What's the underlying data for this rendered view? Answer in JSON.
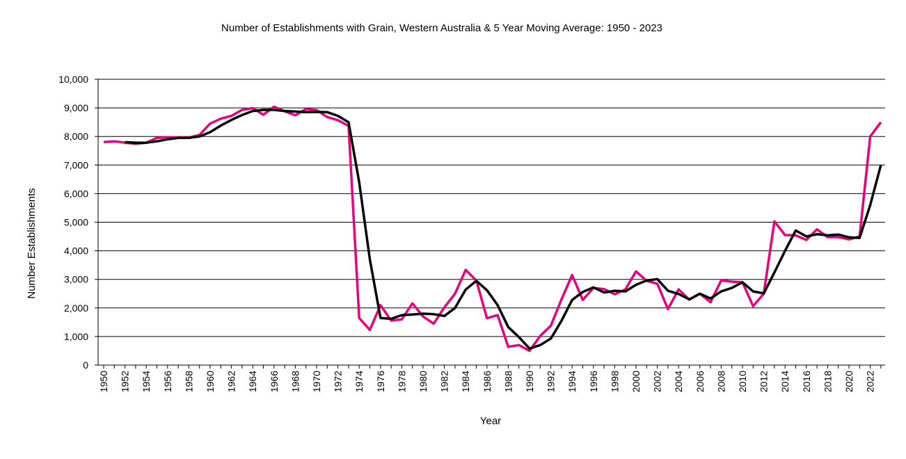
{
  "chart_data": {
    "type": "line",
    "title": "Number of Establishments with Grain, Western Australia & 5 Year Moving Average: 1950 - 2023",
    "xlabel": "Year",
    "ylabel": "Number Establishments",
    "ylim": [
      0,
      10000
    ],
    "y_ticks": [
      "0",
      "1,000",
      "2,000",
      "3,000",
      "4,000",
      "5,000",
      "6,000",
      "7,000",
      "8,000",
      "9,000",
      "10,000"
    ],
    "x_tick_labels": [
      "1950",
      "1952",
      "1954",
      "1956",
      "1958",
      "1960",
      "1962",
      "1964",
      "1966",
      "1968",
      "1970",
      "1972",
      "1974",
      "1976",
      "1978",
      "1980",
      "1982",
      "1984",
      "1986",
      "1988",
      "1990",
      "1992",
      "1994",
      "1996",
      "1998",
      "2000",
      "2002",
      "2004",
      "2006",
      "2008",
      "2010",
      "2012",
      "2014",
      "2016",
      "2018",
      "2020",
      "2022"
    ],
    "grid": "horizontal",
    "colors": {
      "establishments": "#e6007e",
      "moving_average": "#000000"
    },
    "x": [
      1950,
      1951,
      1952,
      1953,
      1954,
      1955,
      1956,
      1957,
      1958,
      1959,
      1960,
      1961,
      1962,
      1963,
      1964,
      1965,
      1966,
      1967,
      1968,
      1969,
      1970,
      1971,
      1972,
      1973,
      1974,
      1975,
      1976,
      1977,
      1978,
      1979,
      1980,
      1981,
      1982,
      1983,
      1984,
      1985,
      1986,
      1987,
      1988,
      1989,
      1990,
      1991,
      1992,
      1993,
      1994,
      1995,
      1996,
      1997,
      1998,
      1999,
      2000,
      2001,
      2002,
      2003,
      2004,
      2005,
      2006,
      2007,
      2008,
      2009,
      2010,
      2011,
      2012,
      2013,
      2014,
      2015,
      2016,
      2017,
      2018,
      2019,
      2020,
      2021,
      2022,
      2023
    ],
    "series": [
      {
        "values": [
          7800,
          7830,
          7780,
          7740,
          7780,
          7950,
          7970,
          7960,
          7960,
          8050,
          8450,
          8620,
          8720,
          8930,
          8990,
          8760,
          9040,
          8880,
          8740,
          8960,
          8920,
          8680,
          8570,
          8370,
          1650,
          1230,
          2100,
          1560,
          1600,
          2160,
          1700,
          1450,
          2020,
          2500,
          3330,
          2960,
          1640,
          1750,
          640,
          700,
          500,
          1020,
          1380,
          2300,
          3150,
          2280,
          2700,
          2660,
          2480,
          2650,
          3280,
          2950,
          2850,
          1960,
          2650,
          2290,
          2500,
          2200,
          2960,
          2920,
          2900,
          2060,
          2500,
          5030,
          4550,
          4540,
          4380,
          4750,
          4480,
          4480,
          4400,
          4500,
          8000,
          8500
        ]
      },
      {
        "values": [
          null,
          null,
          7800,
          7780,
          7780,
          7830,
          7900,
          7950,
          7950,
          8000,
          8150,
          8380,
          8580,
          8750,
          8890,
          8930,
          8930,
          8890,
          8870,
          8850,
          8860,
          8850,
          8720,
          8500,
          6400,
          3700,
          1650,
          1620,
          1750,
          1770,
          1800,
          1780,
          1720,
          2000,
          2640,
          2950,
          2620,
          2100,
          1330,
          980,
          580,
          700,
          930,
          1550,
          2280,
          2560,
          2720,
          2540,
          2600,
          2580,
          2810,
          2960,
          3010,
          2600,
          2490,
          2300,
          2500,
          2330,
          2580,
          2700,
          2900,
          2580,
          2510,
          3240,
          4000,
          4710,
          4500,
          4580,
          4540,
          4570,
          4470,
          4450,
          5600,
          7000
        ]
      }
    ]
  }
}
